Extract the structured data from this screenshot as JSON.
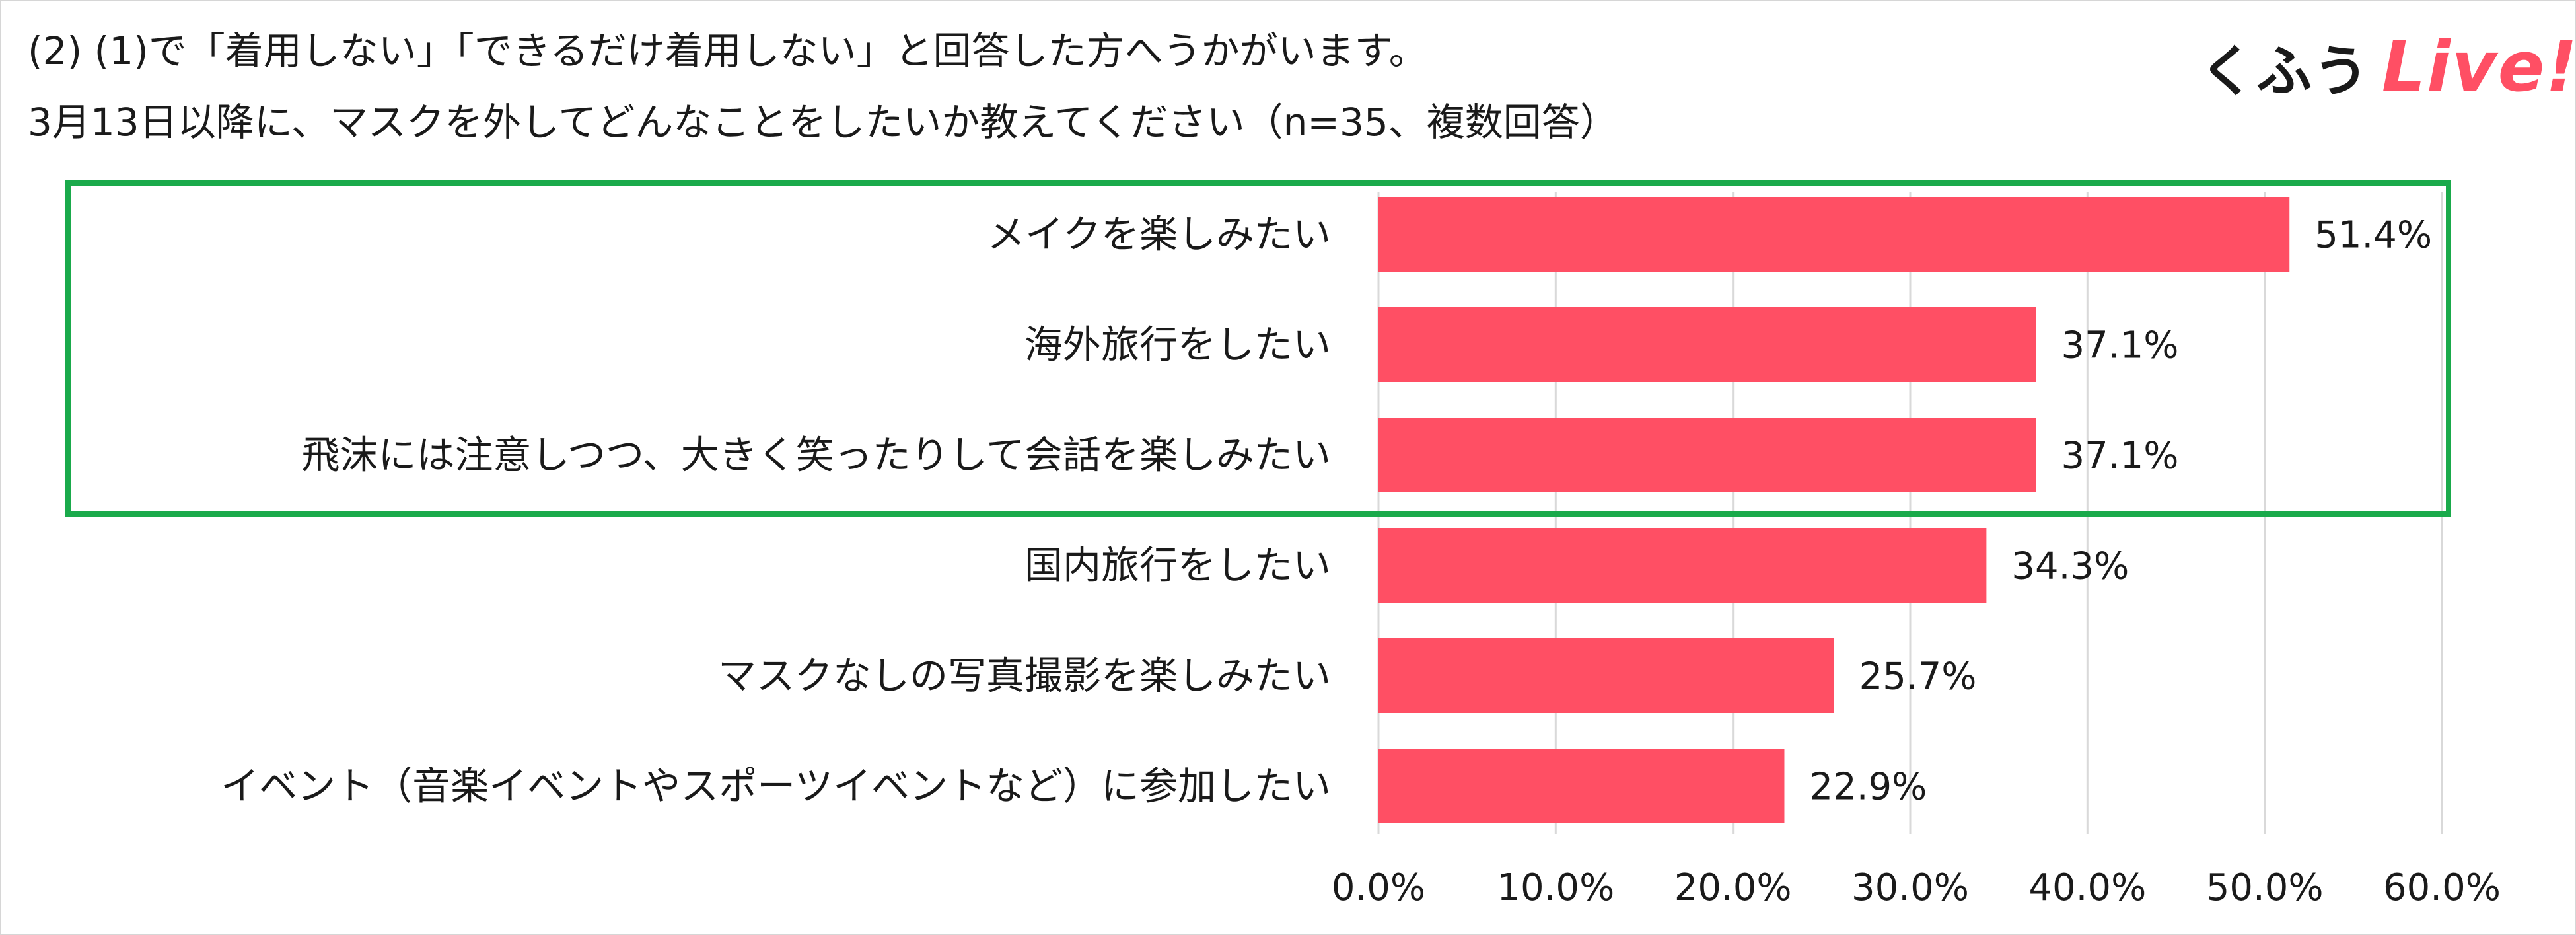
{
  "header": {
    "title_line1": "(2) (1)で「着用しない」「できるだけ着用しない」と回答した方へうかがいます。",
    "title_line2": "3月13日以降に、マスクを外してどんなことをしたいか教えてください（n=35、複数回答）"
  },
  "logo": {
    "kufu": "くふう",
    "live": "Live!"
  },
  "colors": {
    "bar": "#ff4f64",
    "highlight_box": "#1aaa4b",
    "grid": "#d9d9d9",
    "logo_accent": "#ff4f64"
  },
  "chart_data": {
    "type": "bar",
    "orientation": "horizontal",
    "categories": [
      "メイクを楽しみたい",
      "海外旅行をしたい",
      "飛沫には注意しつつ、大きく笑ったりして会話を楽しみたい",
      "国内旅行をしたい",
      "マスクなしの写真撮影を楽しみたい",
      "イベント（音楽イベントやスポーツイベントなど）に参加したい"
    ],
    "values": [
      51.4,
      37.1,
      37.1,
      34.3,
      25.7,
      22.9
    ],
    "value_labels": [
      "51.4%",
      "37.1%",
      "37.1%",
      "34.3%",
      "25.7%",
      "22.9%"
    ],
    "xlim": [
      0,
      60
    ],
    "x_ticks": [
      0,
      10,
      20,
      30,
      40,
      50,
      60
    ],
    "x_tick_labels": [
      "0.0%",
      "10.0%",
      "20.0%",
      "30.0%",
      "40.0%",
      "50.0%",
      "60.0%"
    ],
    "grid": true,
    "highlighted_categories": [
      0,
      1,
      2
    ]
  }
}
